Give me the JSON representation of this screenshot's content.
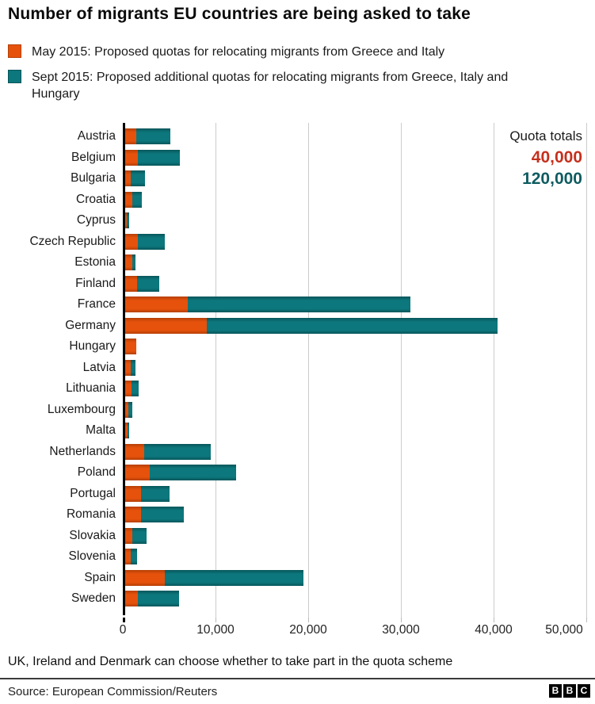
{
  "title": "Number of migrants EU countries are being asked to take",
  "legend": {
    "may_label": "May 2015: Proposed quotas for relocating migrants from Greece and Italy",
    "sept_label": "Sept 2015: Proposed additional quotas for relocating migrants from Greece, Italy and Hungary"
  },
  "quota_totals": {
    "heading": "Quota totals",
    "may_total": "40,000",
    "sept_total": "120,000"
  },
  "colors": {
    "may_fill": "#e6520c",
    "may_edge": "#b53f06",
    "sept_fill": "#0c777c",
    "sept_edge": "#07565a",
    "may_total_text": "#c5301d",
    "sept_total_text": "#0f5c61",
    "gridline": "#cccccc",
    "axis": "#000000"
  },
  "chart_data": {
    "type": "bar",
    "orientation": "horizontal",
    "stacked": true,
    "title": "Number of migrants EU countries are being asked to take",
    "xlabel": "",
    "ylabel": "",
    "xlim": [
      0,
      50000
    ],
    "grid": true,
    "legend_position": "top",
    "categories": [
      "Austria",
      "Belgium",
      "Bulgaria",
      "Croatia",
      "Cyprus",
      "Czech Republic",
      "Estonia",
      "Finland",
      "France",
      "Germany",
      "Hungary",
      "Latvia",
      "Lithuania",
      "Luxembourg",
      "Malta",
      "Netherlands",
      "Poland",
      "Portugal",
      "Romania",
      "Slovakia",
      "Slovenia",
      "Spain",
      "Sweden"
    ],
    "series": [
      {
        "name": "May 2015: Proposed quotas for relocating migrants from Greece and Italy",
        "total": 40000,
        "values": [
          1213,
          1364,
          572,
          747,
          173,
          1328,
          738,
          1286,
          6752,
          8763,
          1184,
          621,
          710,
          348,
          263,
          2047,
          2659,
          1701,
          1705,
          785,
          631,
          4288,
          1369
        ]
      },
      {
        "name": "Sept 2015: Proposed additional quotas for relocating migrants from Greece, Italy and Hungary",
        "total": 120000,
        "values": [
          3640,
          4564,
          1600,
          1064,
          274,
          2978,
          373,
          2398,
          24031,
          31443,
          0,
          526,
          780,
          440,
          133,
          7214,
          9287,
          3074,
          4646,
          1502,
          631,
          14931,
          4469
        ]
      }
    ],
    "x_ticks": [
      {
        "label": "0",
        "value": 0
      },
      {
        "label": "10,000",
        "value": 10000
      },
      {
        "label": "20,000",
        "value": 20000
      },
      {
        "label": "30,000",
        "value": 30000
      },
      {
        "label": "40,000",
        "value": 40000
      },
      {
        "label": "50,000",
        "value": 50000
      }
    ]
  },
  "footnote": "UK, Ireland and Denmark can choose whether to take part in the quota scheme",
  "source": "Source: European Commission/Reuters",
  "logo": {
    "letters": [
      "B",
      "B",
      "C"
    ]
  }
}
